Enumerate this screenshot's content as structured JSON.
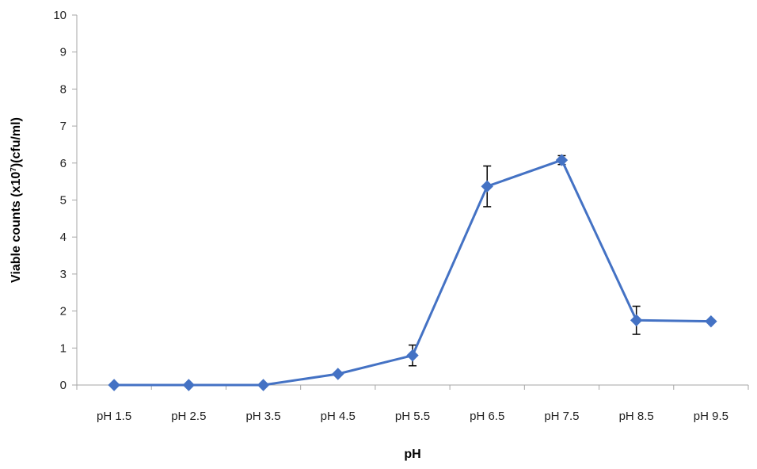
{
  "chart_data": {
    "type": "line",
    "xlabel": "pH",
    "ylabel_main": "Viable counts (x10",
    "ylabel_exp": "7",
    "ylabel_tail": ")(cfu/ml)",
    "ylim": [
      0,
      10
    ],
    "y_ticks": [
      "0",
      "1",
      "2",
      "3",
      "4",
      "5",
      "6",
      "7",
      "8",
      "9",
      "10"
    ],
    "categories": [
      "pH 1.5",
      "pH 2.5",
      "pH 3.5",
      "pH 4.5",
      "pH 5.5",
      "pH 6.5",
      "pH 7.5",
      "pH 8.5",
      "pH 9.5"
    ],
    "series": [
      {
        "values": [
          0,
          0,
          0,
          0.3,
          0.8,
          5.37,
          6.08,
          1.75,
          1.72
        ],
        "error": [
          0,
          0,
          0,
          0,
          0.28,
          0.55,
          0.12,
          0.38,
          0
        ],
        "marker": "diamond"
      }
    ],
    "grid": false,
    "legend": "none",
    "colors": {
      "series": "#4472C4",
      "axis": "#a6a6a6",
      "error_bar": "#000000"
    }
  }
}
